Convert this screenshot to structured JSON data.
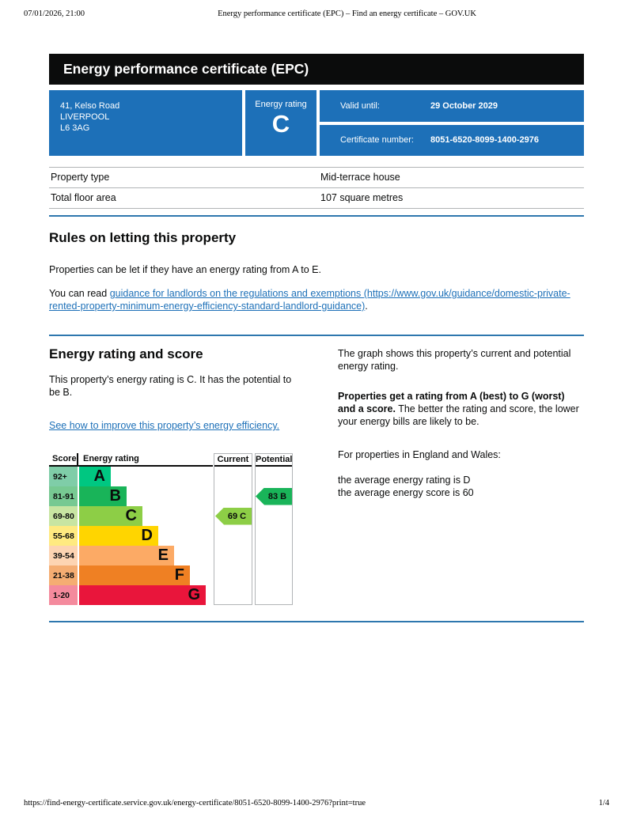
{
  "print_header": {
    "datetime": "07/01/2026, 21:00",
    "title": "Energy performance certificate (EPC) – Find an energy certificate – GOV.UK"
  },
  "print_footer": {
    "url": "https://find-energy-certificate.service.gov.uk/energy-certificate/8051-6520-8099-1400-2976?print=true",
    "page": "1/4"
  },
  "banner": {
    "title": "Energy performance certificate (EPC)"
  },
  "summary": {
    "address_line1": "41, Kelso Road",
    "address_line2": "LIVERPOOL",
    "address_line3": "L6 3AG",
    "energy_rating_label": "Energy rating",
    "energy_rating": "C",
    "valid_until_label": "Valid until:",
    "valid_until": "29 October 2029",
    "certificate_number_label": "Certificate number:",
    "certificate_number": "8051-6520-8099-1400-2976"
  },
  "property_table": {
    "rows": [
      {
        "label": "Property type",
        "value": "Mid-terrace house"
      },
      {
        "label": "Total floor area",
        "value": "107 square metres"
      }
    ]
  },
  "rules_section": {
    "heading": "Rules on letting this property",
    "paragraph1": "Properties can be let if they have an energy rating from A to E.",
    "paragraph2_prefix": "You can read ",
    "link_text": "guidance for landlords on the regulations and exemptions (https://www.gov.uk/guidance/domestic-private-rented-property-minimum-energy-efficiency-standard-landlord-guidance)",
    "paragraph2_suffix": "."
  },
  "rating_section": {
    "heading": "Energy rating and score",
    "paragraph1": "This property’s energy rating is C. It has the potential to be B.",
    "link_text": "See how to improve this property’s energy efficiency.",
    "right_paragraph1": "The graph shows this property’s current and potential energy rating.",
    "right_paragraph2_bold": "Properties get a rating from A (best) to G (worst) and a score.",
    "right_paragraph2_rest": " The better the rating and score, the lower your energy bills are likely to be.",
    "right_paragraph3": "For properties in England and Wales:",
    "avg_rating_line": "the average energy rating is D",
    "avg_score_line": "the average energy score is 60"
  },
  "chart_data": {
    "type": "bar",
    "headers": {
      "score": "Score",
      "rating": "Energy rating",
      "current": "Current",
      "potential": "Potential"
    },
    "bands": [
      {
        "letter": "A",
        "score_range": "92+",
        "color": "#00c781",
        "tint": "#7fcda8"
      },
      {
        "letter": "B",
        "score_range": "81-91",
        "color": "#19b459",
        "tint": "#77c992"
      },
      {
        "letter": "C",
        "score_range": "69-80",
        "color": "#8dce46",
        "tint": "#c8e5a2"
      },
      {
        "letter": "D",
        "score_range": "55-68",
        "color": "#ffd500",
        "tint": "#ffea80"
      },
      {
        "letter": "E",
        "score_range": "39-54",
        "color": "#fcaa65",
        "tint": "#fdd4b2"
      },
      {
        "letter": "F",
        "score_range": "21-38",
        "color": "#ef8023",
        "tint": "#f5ad72"
      },
      {
        "letter": "G",
        "score_range": "1-20",
        "color": "#e9153b",
        "tint": "#f48a9d"
      }
    ],
    "current": {
      "value": 69,
      "band": "C",
      "label": "69  C",
      "color": "#8dce46",
      "band_index": 2
    },
    "potential": {
      "value": 83,
      "band": "B",
      "label": "83  B",
      "color": "#19b459",
      "band_index": 1
    }
  }
}
